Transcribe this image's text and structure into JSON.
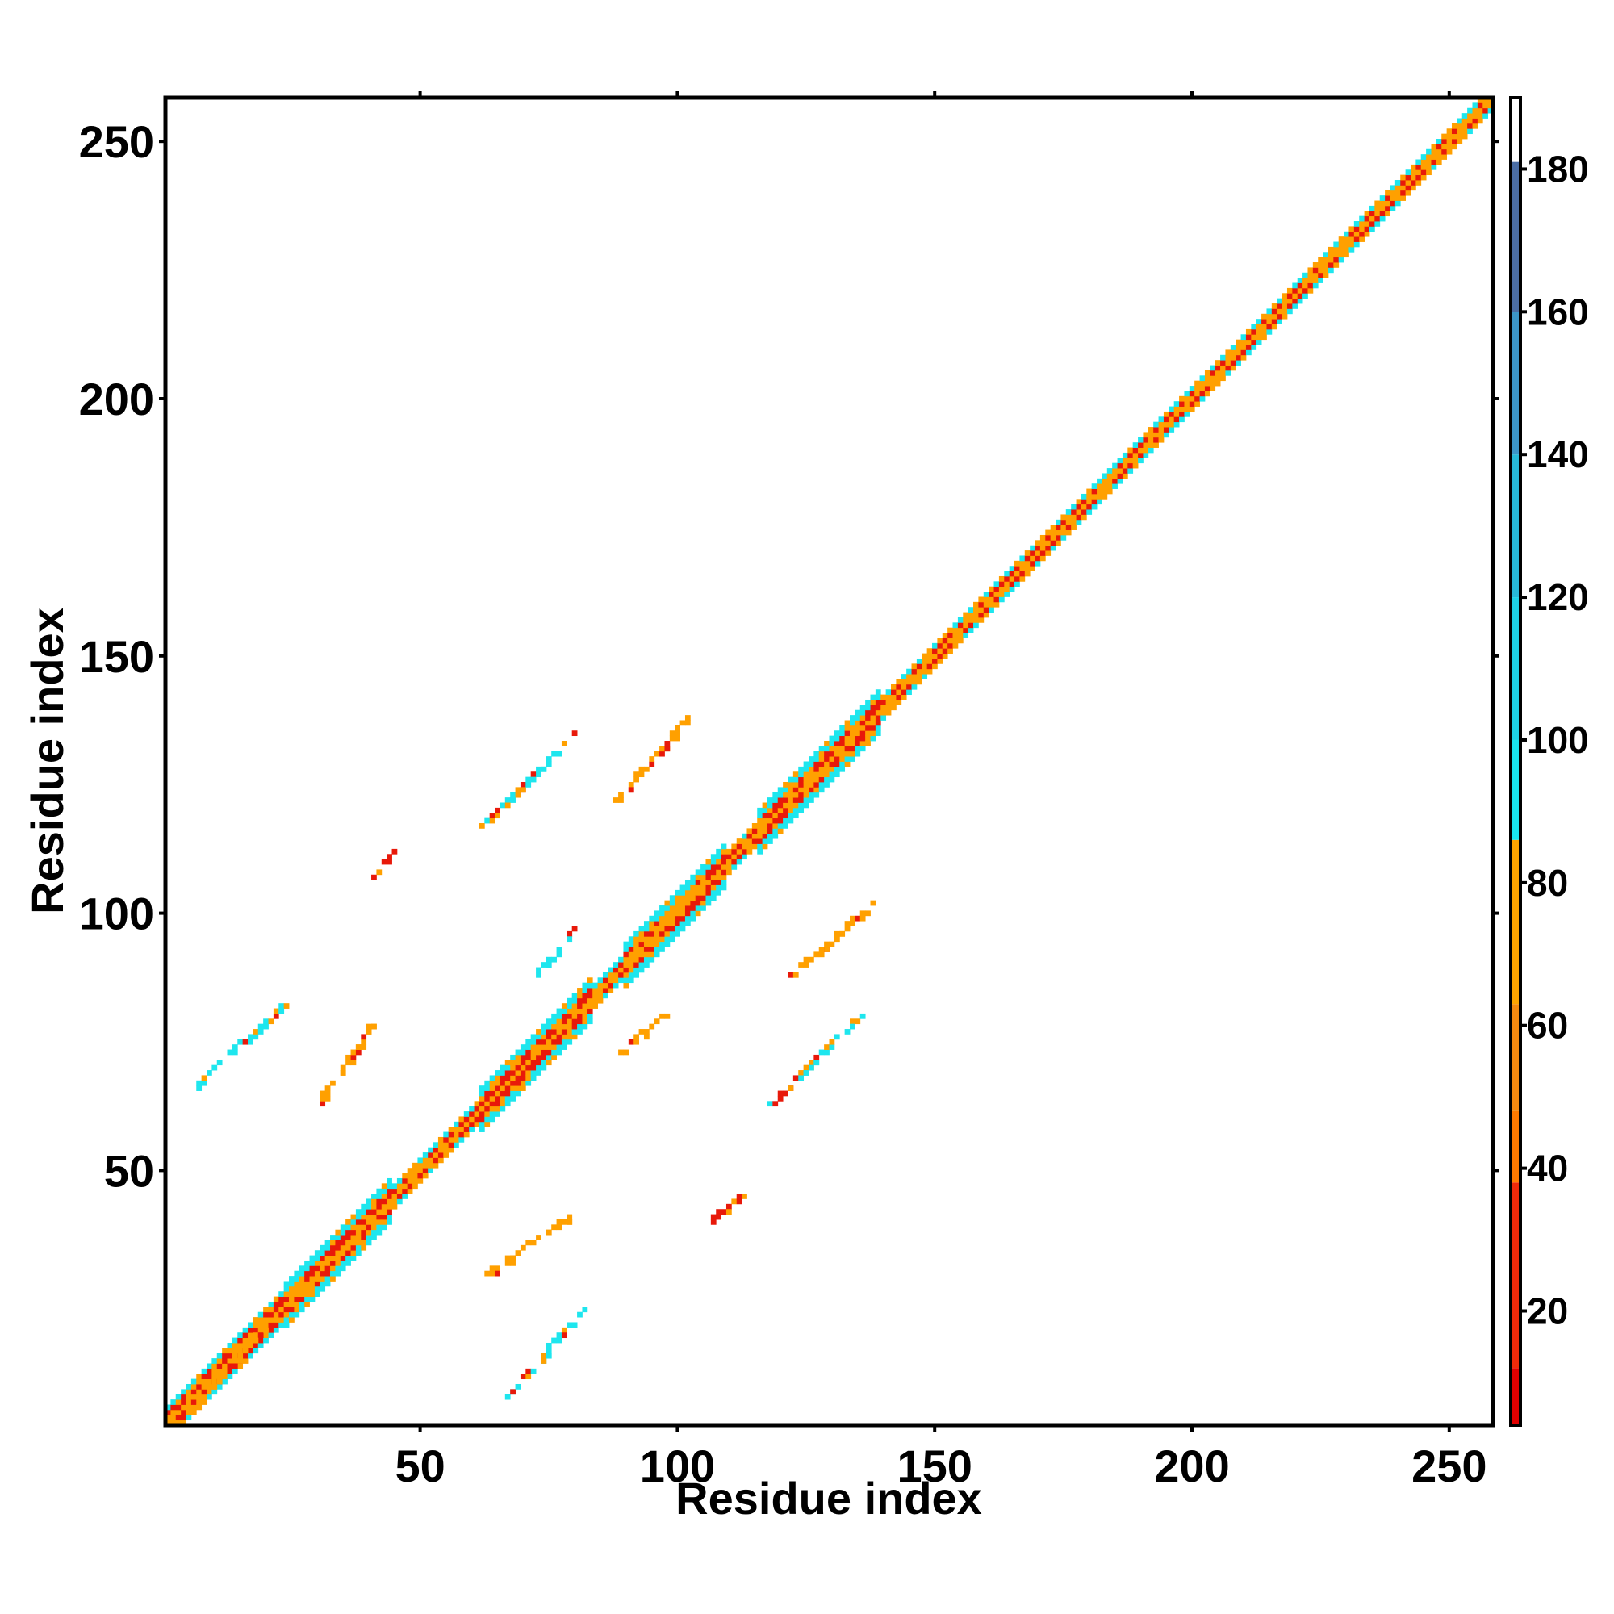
{
  "chart_data": {
    "type": "heatmap",
    "title": "",
    "xlabel": "Residue index",
    "ylabel": "Residue index",
    "xlim": [
      1,
      258
    ],
    "ylim": [
      1,
      258
    ],
    "x_ticks": [
      50,
      100,
      150,
      200,
      250
    ],
    "y_ticks": [
      50,
      100,
      150,
      200,
      250
    ],
    "x_tick_labels": [
      "50",
      "100",
      "150",
      "200",
      "250"
    ],
    "y_tick_labels": [
      "50",
      "100",
      "150",
      "200",
      "250"
    ],
    "colorbar": {
      "range": [
        4,
        190
      ],
      "ticks": [
        20,
        40,
        60,
        80,
        100,
        120,
        140,
        160,
        180
      ],
      "tick_labels": [
        "20",
        "40",
        "60",
        "80",
        "100",
        "120",
        "140",
        "160",
        "180"
      ],
      "bands": [
        {
          "from": 4,
          "to": 12,
          "color": "#e00000"
        },
        {
          "from": 12,
          "to": 38,
          "color": "#ee2a0a"
        },
        {
          "from": 38,
          "to": 48,
          "color": "#ff7a00"
        },
        {
          "from": 48,
          "to": 63,
          "color": "#f58a10"
        },
        {
          "from": 63,
          "to": 86,
          "color": "#ffa500"
        },
        {
          "from": 86,
          "to": 100,
          "color": "#19e6f0"
        },
        {
          "from": 100,
          "to": 120,
          "color": "#1ed2e6"
        },
        {
          "from": 120,
          "to": 140,
          "color": "#27b9d7"
        },
        {
          "from": 140,
          "to": 160,
          "color": "#3c96c8"
        },
        {
          "from": 160,
          "to": 181,
          "color": "#4b6ea5"
        },
        {
          "from": 181,
          "to": 190,
          "color": "#ffffff"
        }
      ]
    },
    "series_colors": {
      "red": "#e8190a",
      "orange": "#ffa000",
      "cyan": "#1ee6ee"
    },
    "diagonal_bands": [
      {
        "from": 1,
        "to": 24,
        "halfwidth": 3
      },
      {
        "from": 24,
        "to": 45,
        "halfwidth": 4
      },
      {
        "from": 45,
        "to": 62,
        "halfwidth": 2
      },
      {
        "from": 62,
        "to": 84,
        "halfwidth": 4
      },
      {
        "from": 84,
        "to": 90,
        "halfwidth": 2
      },
      {
        "from": 90,
        "to": 110,
        "halfwidth": 4
      },
      {
        "from": 110,
        "to": 116,
        "halfwidth": 2
      },
      {
        "from": 116,
        "to": 140,
        "halfwidth": 4
      },
      {
        "from": 140,
        "to": 258,
        "halfwidth": 2
      }
    ],
    "offdiagonal_contacts": [
      {
        "x": [
          7,
          23
        ],
        "y": [
          67,
          82
        ],
        "color": "cyan"
      },
      {
        "x": [
          30,
          41
        ],
        "y": [
          63,
          79
        ],
        "color": "orange"
      },
      {
        "x": [
          41,
          45
        ],
        "y": [
          107,
          112
        ],
        "color": "red"
      },
      {
        "x": [
          62,
          80
        ],
        "y": [
          117,
          135
        ],
        "color": "cyan"
      },
      {
        "x": [
          88,
          102
        ],
        "y": [
          122,
          138
        ],
        "color": "orange"
      },
      {
        "x": [
          73,
          80
        ],
        "y": [
          89,
          97
        ],
        "color": "cyan"
      },
      {
        "x": [
          89,
          97
        ],
        "y": [
          73,
          80
        ],
        "color": "orange"
      },
      {
        "x": [
          67,
          82
        ],
        "y": [
          7,
          23
        ],
        "color": "cyan"
      },
      {
        "x": [
          63,
          79
        ],
        "y": [
          30,
          41
        ],
        "color": "orange"
      },
      {
        "x": [
          107,
          112
        ],
        "y": [
          41,
          45
        ],
        "color": "red"
      },
      {
        "x": [
          117,
          135
        ],
        "y": [
          62,
          80
        ],
        "color": "cyan"
      },
      {
        "x": [
          122,
          138
        ],
        "y": [
          88,
          102
        ],
        "color": "orange"
      },
      {
        "x": [
          10,
          19
        ],
        "y": [
          9,
          19
        ],
        "color": "orange"
      }
    ]
  }
}
